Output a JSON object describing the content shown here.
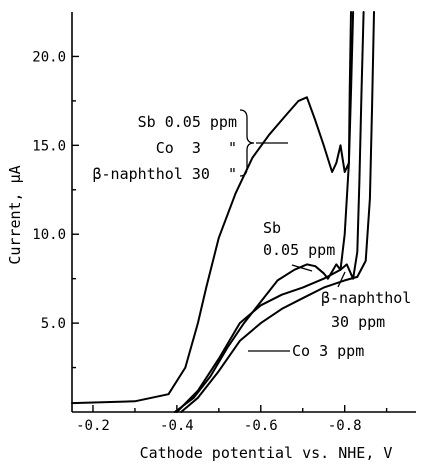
{
  "chart_data": {
    "type": "line",
    "title": "",
    "xlabel": "Cathode potential vs. NHE, V",
    "ylabel": "Current, μA",
    "xlim": [
      -0.15,
      -0.97
    ],
    "ylim": [
      0,
      22.5
    ],
    "x_ticks": [
      -0.2,
      -0.4,
      -0.6,
      -0.8
    ],
    "x_tick_labels": [
      "-0.2",
      "-0.4",
      "-0.6",
      "-0.8"
    ],
    "y_ticks": [
      5.0,
      10.0,
      15.0,
      20.0
    ],
    "y_tick_labels": [
      "5.0",
      "10.0",
      "15.0",
      "20.0"
    ],
    "grid": false,
    "series": [
      {
        "x": [
          -0.15,
          -0.3,
          -0.38,
          -0.42,
          -0.45,
          -0.47,
          -0.5,
          -0.54,
          -0.58,
          -0.62,
          -0.66,
          -0.69,
          -0.71,
          -0.73,
          -0.75,
          -0.77,
          -0.78,
          -0.79,
          -0.8,
          -0.81,
          -0.812,
          -0.815
        ],
        "y": [
          0.5,
          0.6,
          1.0,
          2.5,
          5.0,
          7.0,
          9.8,
          12.3,
          14.3,
          15.6,
          16.7,
          17.5,
          17.7,
          16.4,
          15.0,
          13.5,
          14.0,
          15.0,
          13.5,
          14.0,
          18.0,
          22.5
        ]
      },
      {
        "x": [
          -0.395,
          -0.44,
          -0.48,
          -0.52,
          -0.56,
          -0.6,
          -0.64,
          -0.68,
          -0.71,
          -0.73,
          -0.75,
          -0.76,
          -0.77,
          -0.78,
          -0.79,
          -0.8,
          -0.81,
          -0.815,
          -0.82
        ],
        "y": [
          0.0,
          0.8,
          2.0,
          3.6,
          5.0,
          6.2,
          7.4,
          8.0,
          8.3,
          8.2,
          7.8,
          7.5,
          7.9,
          8.3,
          8.0,
          10.0,
          14.0,
          18.0,
          22.5
        ]
      },
      {
        "x": [
          -0.4,
          -0.45,
          -0.5,
          -0.55,
          -0.6,
          -0.65,
          -0.7,
          -0.75,
          -0.79,
          -0.805,
          -0.82,
          -0.83,
          -0.835,
          -0.84,
          -0.845
        ],
        "y": [
          0.0,
          1.2,
          3.0,
          5.0,
          6.0,
          6.6,
          7.0,
          7.5,
          8.0,
          8.3,
          7.5,
          9.0,
          13.0,
          18.0,
          22.5
        ]
      },
      {
        "x": [
          -0.41,
          -0.45,
          -0.5,
          -0.55,
          -0.6,
          -0.65,
          -0.7,
          -0.75,
          -0.8,
          -0.83,
          -0.85,
          -0.86,
          -0.865,
          -0.87
        ],
        "y": [
          0.0,
          0.8,
          2.3,
          4.0,
          5.0,
          5.8,
          6.4,
          7.0,
          7.4,
          7.6,
          8.5,
          12.0,
          17.0,
          22.5
        ]
      }
    ],
    "annotations": {
      "combined_line1": "Sb 0.05 ppm",
      "combined_line2": "Co  3   \"",
      "combined_line3": "β-naphthol 30  \"",
      "sb_line1": "Sb",
      "sb_line2": "0.05 ppm",
      "naph_line1": "β-naphthol",
      "naph_line2": "30 ppm",
      "co": "Co 3 ppm"
    }
  }
}
